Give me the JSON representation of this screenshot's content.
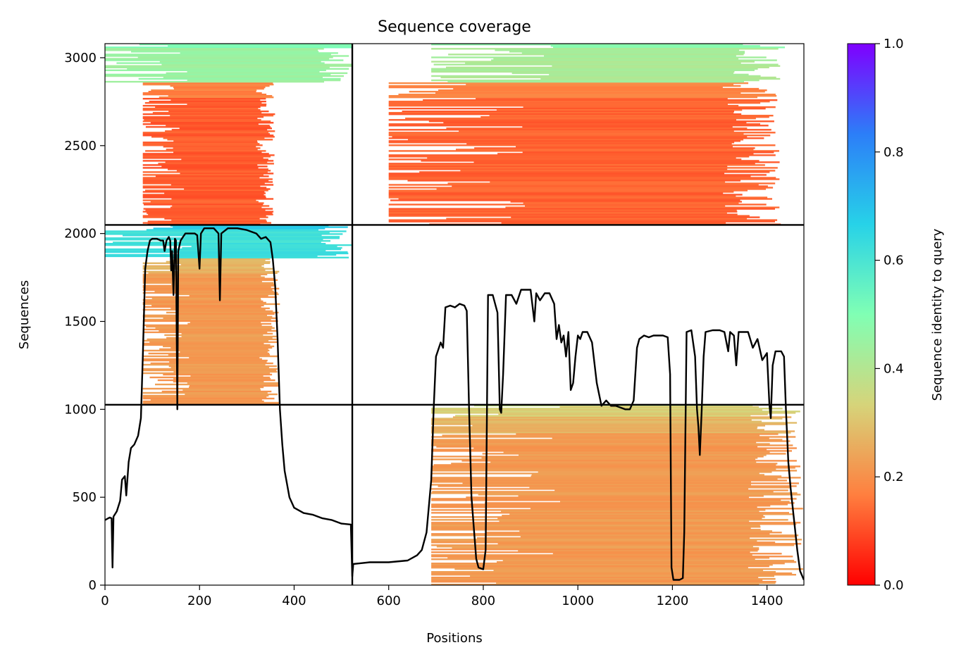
{
  "chart_data": {
    "type": "heatmap",
    "title": "Sequence coverage",
    "xlabel": "Positions",
    "ylabel": "Sequences",
    "xlim": [
      0,
      1478
    ],
    "ylim": [
      0,
      3080
    ],
    "x_ticks": [
      0,
      200,
      400,
      600,
      800,
      1000,
      1200,
      1400
    ],
    "y_ticks": [
      0,
      500,
      1000,
      1500,
      2000,
      2500,
      3000
    ],
    "colorbar": {
      "label": "Sequence identity to query",
      "range": [
        0.0,
        1.0
      ],
      "ticks": [
        "0.0",
        "0.2",
        "0.4",
        "0.6",
        "0.8",
        "1.0"
      ],
      "colormap": [
        "#ff0000",
        "#ff7f3f",
        "#d6d47a",
        "#80ffb4",
        "#27d2e8",
        "#2c7ef8",
        "#7f00ff"
      ]
    },
    "domain_boundaries": {
      "x": [
        523
      ],
      "y": [
        1026,
        2049
      ]
    },
    "blocks": [
      {
        "x": [
          0,
          523
        ],
        "y": [
          2049,
          2860
        ],
        "identity": 0.12,
        "coverage_x": [
          80,
          360
        ]
      },
      {
        "x": [
          0,
          523
        ],
        "y": [
          2860,
          3080
        ],
        "identity": 0.45
      },
      {
        "x": [
          523,
          1478
        ],
        "y": [
          2049,
          2860
        ],
        "identity": 0.13,
        "coverage_x": [
          600,
          1430
        ]
      },
      {
        "x": [
          523,
          1478
        ],
        "y": [
          2860,
          3080
        ],
        "identity": 0.42,
        "coverage_x": [
          690,
          1440
        ]
      },
      {
        "x": [
          0,
          523
        ],
        "y": [
          1026,
          1860
        ],
        "identity": 0.22,
        "coverage_x": [
          80,
          370
        ]
      },
      {
        "x": [
          0,
          523
        ],
        "y": [
          1860,
          2049
        ],
        "identity": 0.62
      },
      {
        "x": [
          523,
          1478
        ],
        "y": [
          0,
          960
        ],
        "identity": 0.22,
        "coverage_x": [
          690,
          1478
        ]
      },
      {
        "x": [
          523,
          1478
        ],
        "y": [
          960,
          1026
        ],
        "identity": 0.32,
        "coverage_x": [
          690,
          1478
        ]
      }
    ],
    "coverage_line": [
      [
        0,
        370
      ],
      [
        10,
        385
      ],
      [
        14,
        380
      ],
      [
        16,
        100
      ],
      [
        18,
        390
      ],
      [
        25,
        420
      ],
      [
        32,
        480
      ],
      [
        36,
        600
      ],
      [
        42,
        620
      ],
      [
        45,
        510
      ],
      [
        50,
        700
      ],
      [
        55,
        780
      ],
      [
        62,
        800
      ],
      [
        70,
        850
      ],
      [
        76,
        950
      ],
      [
        80,
        1300
      ],
      [
        85,
        1800
      ],
      [
        90,
        1900
      ],
      [
        95,
        1960
      ],
      [
        100,
        1970
      ],
      [
        110,
        1970
      ],
      [
        118,
        1960
      ],
      [
        123,
        1960
      ],
      [
        126,
        1900
      ],
      [
        130,
        1960
      ],
      [
        135,
        1980
      ],
      [
        138,
        1960
      ],
      [
        140,
        1790
      ],
      [
        142,
        1900
      ],
      [
        145,
        1650
      ],
      [
        148,
        1970
      ],
      [
        150,
        1960
      ],
      [
        153,
        1000
      ],
      [
        155,
        1900
      ],
      [
        160,
        1960
      ],
      [
        170,
        2000
      ],
      [
        180,
        2000
      ],
      [
        190,
        2000
      ],
      [
        195,
        1990
      ],
      [
        200,
        1800
      ],
      [
        203,
        2000
      ],
      [
        210,
        2030
      ],
      [
        230,
        2030
      ],
      [
        240,
        2000
      ],
      [
        243,
        1620
      ],
      [
        246,
        2000
      ],
      [
        260,
        2030
      ],
      [
        280,
        2030
      ],
      [
        300,
        2020
      ],
      [
        320,
        2000
      ],
      [
        330,
        1970
      ],
      [
        340,
        1980
      ],
      [
        350,
        1950
      ],
      [
        355,
        1850
      ],
      [
        360,
        1700
      ],
      [
        365,
        1400
      ],
      [
        370,
        1000
      ],
      [
        375,
        800
      ],
      [
        380,
        650
      ],
      [
        390,
        500
      ],
      [
        400,
        440
      ],
      [
        420,
        410
      ],
      [
        440,
        400
      ],
      [
        460,
        380
      ],
      [
        480,
        370
      ],
      [
        500,
        350
      ],
      [
        520,
        345
      ],
      [
        523,
        50
      ],
      [
        525,
        120
      ],
      [
        560,
        130
      ],
      [
        600,
        130
      ],
      [
        640,
        140
      ],
      [
        660,
        170
      ],
      [
        670,
        200
      ],
      [
        680,
        300
      ],
      [
        690,
        600
      ],
      [
        695,
        1000
      ],
      [
        700,
        1300
      ],
      [
        710,
        1380
      ],
      [
        715,
        1350
      ],
      [
        720,
        1580
      ],
      [
        730,
        1590
      ],
      [
        740,
        1580
      ],
      [
        750,
        1600
      ],
      [
        760,
        1590
      ],
      [
        765,
        1560
      ],
      [
        770,
        1000
      ],
      [
        775,
        500
      ],
      [
        785,
        150
      ],
      [
        790,
        100
      ],
      [
        800,
        90
      ],
      [
        805,
        200
      ],
      [
        810,
        1650
      ],
      [
        820,
        1650
      ],
      [
        830,
        1550
      ],
      [
        835,
        1000
      ],
      [
        838,
        980
      ],
      [
        842,
        1200
      ],
      [
        848,
        1650
      ],
      [
        860,
        1650
      ],
      [
        870,
        1600
      ],
      [
        880,
        1680
      ],
      [
        900,
        1680
      ],
      [
        908,
        1500
      ],
      [
        912,
        1660
      ],
      [
        920,
        1620
      ],
      [
        930,
        1660
      ],
      [
        940,
        1660
      ],
      [
        950,
        1600
      ],
      [
        955,
        1400
      ],
      [
        960,
        1480
      ],
      [
        965,
        1380
      ],
      [
        970,
        1420
      ],
      [
        975,
        1300
      ],
      [
        980,
        1440
      ],
      [
        985,
        1110
      ],
      [
        990,
        1150
      ],
      [
        995,
        1300
      ],
      [
        1000,
        1420
      ],
      [
        1005,
        1400
      ],
      [
        1010,
        1440
      ],
      [
        1020,
        1440
      ],
      [
        1030,
        1380
      ],
      [
        1040,
        1150
      ],
      [
        1050,
        1020
      ],
      [
        1060,
        1050
      ],
      [
        1070,
        1020
      ],
      [
        1080,
        1020
      ],
      [
        1090,
        1010
      ],
      [
        1100,
        1000
      ],
      [
        1110,
        1000
      ],
      [
        1118,
        1050
      ],
      [
        1125,
        1350
      ],
      [
        1130,
        1400
      ],
      [
        1140,
        1420
      ],
      [
        1150,
        1410
      ],
      [
        1160,
        1420
      ],
      [
        1170,
        1420
      ],
      [
        1180,
        1420
      ],
      [
        1190,
        1410
      ],
      [
        1195,
        1200
      ],
      [
        1198,
        100
      ],
      [
        1202,
        30
      ],
      [
        1215,
        30
      ],
      [
        1222,
        40
      ],
      [
        1225,
        300
      ],
      [
        1230,
        1440
      ],
      [
        1240,
        1450
      ],
      [
        1248,
        1300
      ],
      [
        1252,
        1000
      ],
      [
        1255,
        900
      ],
      [
        1258,
        740
      ],
      [
        1262,
        1000
      ],
      [
        1266,
        1300
      ],
      [
        1270,
        1440
      ],
      [
        1285,
        1450
      ],
      [
        1300,
        1450
      ],
      [
        1310,
        1440
      ],
      [
        1318,
        1330
      ],
      [
        1322,
        1440
      ],
      [
        1330,
        1420
      ],
      [
        1335,
        1250
      ],
      [
        1340,
        1440
      ],
      [
        1360,
        1440
      ],
      [
        1370,
        1350
      ],
      [
        1380,
        1400
      ],
      [
        1390,
        1280
      ],
      [
        1400,
        1320
      ],
      [
        1405,
        1030
      ],
      [
        1408,
        950
      ],
      [
        1412,
        1250
      ],
      [
        1418,
        1330
      ],
      [
        1430,
        1330
      ],
      [
        1436,
        1300
      ],
      [
        1440,
        1000
      ],
      [
        1445,
        700
      ],
      [
        1450,
        550
      ],
      [
        1458,
        350
      ],
      [
        1464,
        200
      ],
      [
        1470,
        80
      ],
      [
        1478,
        30
      ]
    ]
  }
}
